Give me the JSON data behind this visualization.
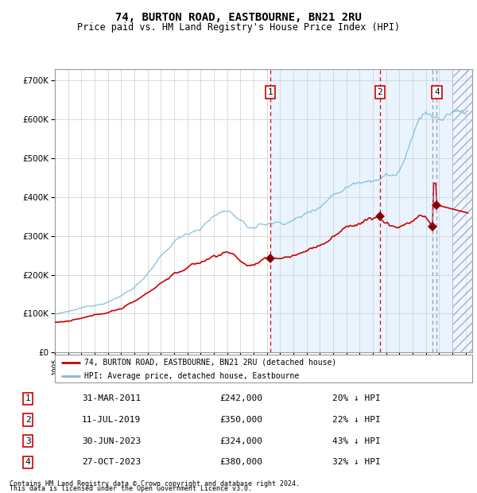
{
  "title": "74, BURTON ROAD, EASTBOURNE, BN21 2RU",
  "subtitle": "Price paid vs. HM Land Registry's House Price Index (HPI)",
  "footer1": "Contains HM Land Registry data © Crown copyright and database right 2024.",
  "footer2": "This data is licensed under the Open Government Licence v3.0.",
  "legend_red": "74, BURTON ROAD, EASTBOURNE, BN21 2RU (detached house)",
  "legend_blue": "HPI: Average price, detached house, Eastbourne",
  "transactions": [
    {
      "num": 1,
      "date": "31-MAR-2011",
      "price": 242000,
      "pct": "20%",
      "year": 2011.25
    },
    {
      "num": 2,
      "date": "11-JUL-2019",
      "price": 350000,
      "pct": "22%",
      "year": 2019.53
    },
    {
      "num": 3,
      "date": "30-JUN-2023",
      "price": 324000,
      "pct": "43%",
      "year": 2023.5
    },
    {
      "num": 4,
      "date": "27-OCT-2023",
      "price": 380000,
      "pct": "32%",
      "year": 2023.83
    }
  ],
  "hpi_color": "#7ab8d9",
  "price_color": "#cc0000",
  "bg_shade_color": "#ddeeff",
  "vline_red_color": "#dd0000",
  "vline_blue_color": "#9999bb",
  "ylim": [
    0,
    730000
  ],
  "xlim_start": 1995.0,
  "xlim_end": 2026.5,
  "ownership_start": 2011.25,
  "hatch_start": 2025.0
}
